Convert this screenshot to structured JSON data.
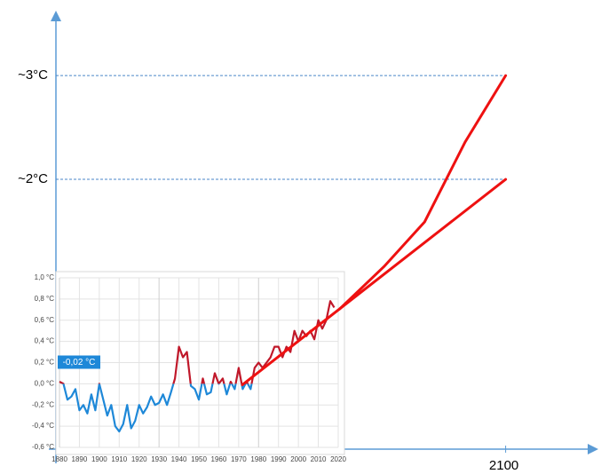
{
  "chart_data": [
    {
      "type": "line",
      "xlim": [
        1878,
        2144
      ],
      "ylim": [
        -0.6,
        3.6
      ],
      "xticks": [
        {
          "value": 2100,
          "label": "2100"
        }
      ],
      "yticks": [
        {
          "value": 2,
          "label": "~2°C"
        },
        {
          "value": 3,
          "label": "~3°C"
        }
      ],
      "grid": true,
      "series": [
        {
          "color": "#ee1111",
          "x": [
            1970,
            2100
          ],
          "values": [
            0.02,
            2.0
          ]
        },
        {
          "color": "#ee1111",
          "x": [
            2018,
            2040,
            2060,
            2080,
            2100
          ],
          "values": [
            0.75,
            1.16,
            1.59,
            2.36,
            3.0
          ]
        }
      ]
    },
    {
      "type": "line",
      "xlim": [
        1880,
        2020
      ],
      "ylim": [
        -0.6,
        1.0
      ],
      "xticks": [
        1880,
        1890,
        1900,
        1910,
        1920,
        1930,
        1940,
        1950,
        1960,
        1970,
        1980,
        1990,
        2000,
        2010,
        2020
      ],
      "yticks": [
        {
          "value": -0.6,
          "label": "-0,6 °C"
        },
        {
          "value": -0.4,
          "label": "-0,4 °C"
        },
        {
          "value": -0.2,
          "label": "-0,2 °C"
        },
        {
          "value": 0,
          "label": "0,0 °C"
        },
        {
          "value": 0.2,
          "label": "0,2 °C"
        },
        {
          "value": 0.4,
          "label": "0,4 °C"
        },
        {
          "value": 0.6,
          "label": "0,6 °C"
        },
        {
          "value": 0.8,
          "label": "0,8 °C"
        },
        {
          "value": 1.0,
          "label": "1,0 °C"
        }
      ],
      "grid": true,
      "annotation": "-0,02 °C",
      "series": [
        {
          "color": "#c0182a",
          "color_below": "#1e88d8",
          "x": [
            1880,
            1882,
            1884,
            1886,
            1888,
            1890,
            1892,
            1894,
            1896,
            1898,
            1900,
            1902,
            1904,
            1906,
            1908,
            1910,
            1912,
            1914,
            1916,
            1918,
            1920,
            1922,
            1924,
            1926,
            1928,
            1930,
            1932,
            1934,
            1936,
            1938,
            1940,
            1942,
            1944,
            1946,
            1948,
            1950,
            1952,
            1954,
            1956,
            1958,
            1960,
            1962,
            1964,
            1966,
            1968,
            1970,
            1972,
            1974,
            1976,
            1978,
            1980,
            1982,
            1984,
            1986,
            1988,
            1990,
            1992,
            1994,
            1996,
            1998,
            2000,
            2002,
            2004,
            2006,
            2008,
            2010,
            2012,
            2014,
            2016,
            2018
          ],
          "values": [
            0.02,
            0.0,
            -0.15,
            -0.12,
            -0.05,
            -0.25,
            -0.2,
            -0.28,
            -0.1,
            -0.25,
            0.0,
            -0.15,
            -0.3,
            -0.2,
            -0.4,
            -0.45,
            -0.38,
            -0.2,
            -0.42,
            -0.35,
            -0.2,
            -0.28,
            -0.22,
            -0.12,
            -0.2,
            -0.18,
            -0.1,
            -0.2,
            -0.08,
            0.05,
            0.35,
            0.25,
            0.3,
            -0.02,
            -0.05,
            -0.15,
            0.05,
            -0.1,
            -0.08,
            0.1,
            0.0,
            0.05,
            -0.1,
            0.02,
            -0.05,
            0.15,
            -0.05,
            0.02,
            -0.05,
            0.15,
            0.2,
            0.15,
            0.2,
            0.25,
            0.35,
            0.35,
            0.25,
            0.35,
            0.3,
            0.5,
            0.4,
            0.5,
            0.45,
            0.5,
            0.42,
            0.6,
            0.52,
            0.6,
            0.78,
            0.72
          ]
        }
      ]
    }
  ]
}
